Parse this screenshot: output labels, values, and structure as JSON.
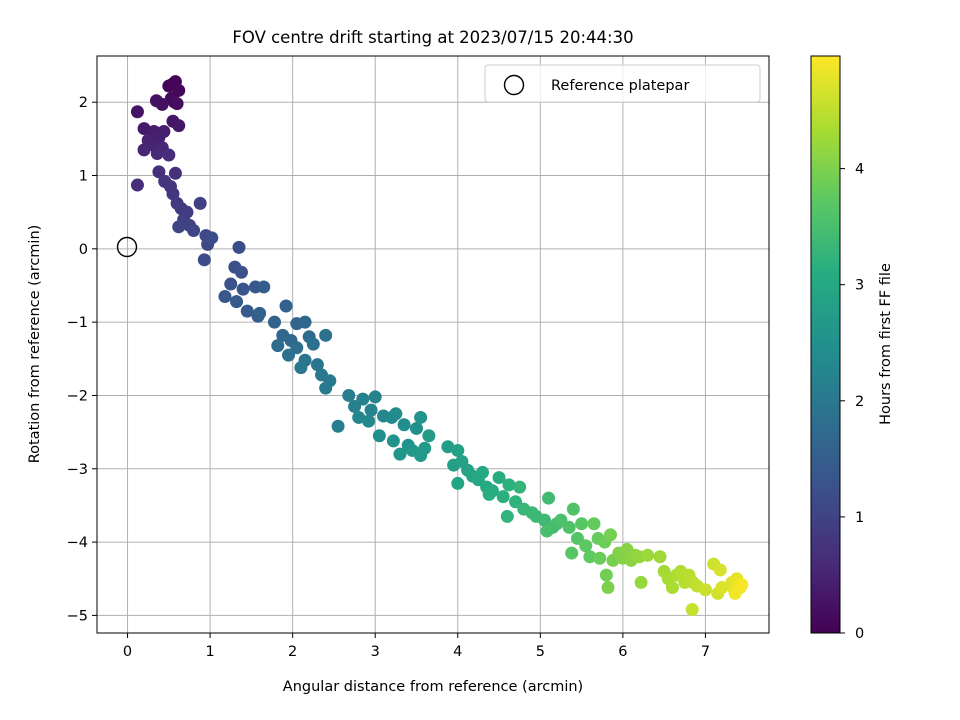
{
  "chart_data": {
    "type": "scatter",
    "title": "FOV centre drift starting at 2023/07/15 20:44:30",
    "xlabel": "Angular distance from reference (arcmin)",
    "ylabel": "Rotation from reference (arcmin)",
    "xlim": [
      -0.37,
      7.77
    ],
    "ylim": [
      -5.24,
      2.63
    ],
    "xticks": [
      0,
      1,
      2,
      3,
      4,
      5,
      6,
      7
    ],
    "yticks": [
      -5,
      -4,
      -3,
      -2,
      -1,
      0,
      1,
      2
    ],
    "grid": true,
    "legend": {
      "position": "top-right",
      "entries": [
        {
          "label": "Reference platepar",
          "marker": "open-circle"
        }
      ]
    },
    "reference_point": {
      "x": 0,
      "y": 0
    },
    "colorbar": {
      "label": "Hours from first FF file",
      "colormap": "viridis",
      "range": [
        0,
        4.97
      ],
      "ticks": [
        0,
        1,
        2,
        3,
        4
      ]
    },
    "points": [
      [
        0.55,
        2.25,
        0.0
      ],
      [
        0.58,
        2.28,
        0.03
      ],
      [
        0.5,
        2.22,
        0.06
      ],
      [
        0.62,
        2.16,
        0.09
      ],
      [
        0.53,
        2.05,
        0.12
      ],
      [
        0.57,
        2.0,
        0.15
      ],
      [
        0.6,
        1.98,
        0.18
      ],
      [
        0.42,
        1.97,
        0.21
      ],
      [
        0.35,
        2.02,
        0.24
      ],
      [
        0.12,
        1.87,
        0.27
      ],
      [
        0.55,
        1.74,
        0.3
      ],
      [
        0.62,
        1.68,
        0.33
      ],
      [
        0.2,
        1.64,
        0.36
      ],
      [
        0.32,
        1.6,
        0.39
      ],
      [
        0.44,
        1.6,
        0.42
      ],
      [
        0.38,
        1.52,
        0.45
      ],
      [
        0.25,
        1.48,
        0.48
      ],
      [
        0.3,
        1.42,
        0.51
      ],
      [
        0.2,
        1.35,
        0.54
      ],
      [
        0.42,
        1.38,
        0.57
      ],
      [
        0.36,
        1.3,
        0.6
      ],
      [
        0.5,
        1.28,
        0.63
      ],
      [
        0.12,
        0.87,
        0.66
      ],
      [
        0.38,
        1.05,
        0.69
      ],
      [
        0.58,
        1.03,
        0.72
      ],
      [
        0.45,
        0.92,
        0.75
      ],
      [
        0.52,
        0.85,
        0.78
      ],
      [
        0.55,
        0.75,
        0.81
      ],
      [
        0.6,
        0.62,
        0.84
      ],
      [
        0.65,
        0.55,
        0.87
      ],
      [
        0.72,
        0.5,
        0.9
      ],
      [
        0.68,
        0.4,
        0.93
      ],
      [
        0.88,
        0.62,
        0.96
      ],
      [
        0.75,
        0.32,
        0.99
      ],
      [
        0.62,
        0.3,
        1.02
      ],
      [
        0.8,
        0.25,
        1.05
      ],
      [
        0.95,
        0.18,
        1.08
      ],
      [
        0.97,
        0.06,
        1.11
      ],
      [
        0.93,
        -0.15,
        1.14
      ],
      [
        1.02,
        0.15,
        1.17
      ],
      [
        1.35,
        0.02,
        1.2
      ],
      [
        1.3,
        -0.25,
        1.23
      ],
      [
        1.38,
        -0.32,
        1.26
      ],
      [
        1.25,
        -0.48,
        1.29
      ],
      [
        1.4,
        -0.55,
        1.32
      ],
      [
        1.55,
        -0.52,
        1.35
      ],
      [
        1.18,
        -0.65,
        1.38
      ],
      [
        1.32,
        -0.72,
        1.41
      ],
      [
        1.45,
        -0.85,
        1.44
      ],
      [
        1.58,
        -0.92,
        1.47
      ],
      [
        1.65,
        -0.52,
        1.5
      ],
      [
        1.6,
        -0.88,
        1.53
      ],
      [
        1.92,
        -0.78,
        1.56
      ],
      [
        1.78,
        -1.0,
        1.59
      ],
      [
        2.05,
        -1.02,
        1.62
      ],
      [
        1.88,
        -1.18,
        1.65
      ],
      [
        2.15,
        -1.0,
        1.68
      ],
      [
        1.98,
        -1.25,
        1.71
      ],
      [
        2.2,
        -1.2,
        1.74
      ],
      [
        1.82,
        -1.32,
        1.77
      ],
      [
        2.05,
        -1.35,
        1.8
      ],
      [
        2.25,
        -1.3,
        1.83
      ],
      [
        2.4,
        -1.18,
        1.86
      ],
      [
        1.95,
        -1.45,
        1.89
      ],
      [
        2.15,
        -1.52,
        1.92
      ],
      [
        2.3,
        -1.58,
        1.95
      ],
      [
        2.1,
        -1.62,
        1.98
      ],
      [
        2.35,
        -1.72,
        2.01
      ],
      [
        2.45,
        -1.8,
        2.04
      ],
      [
        2.4,
        -1.9,
        2.07
      ],
      [
        2.68,
        -2.0,
        2.1
      ],
      [
        2.55,
        -2.42,
        2.13
      ],
      [
        2.75,
        -2.15,
        2.16
      ],
      [
        2.85,
        -2.05,
        2.19
      ],
      [
        3.0,
        -2.02,
        2.22
      ],
      [
        2.95,
        -2.2,
        2.25
      ],
      [
        3.1,
        -2.28,
        2.28
      ],
      [
        2.8,
        -2.3,
        2.31
      ],
      [
        2.92,
        -2.35,
        2.34
      ],
      [
        3.2,
        -2.3,
        2.37
      ],
      [
        3.25,
        -2.25,
        2.4
      ],
      [
        3.35,
        -2.4,
        2.43
      ],
      [
        3.5,
        -2.45,
        2.46
      ],
      [
        3.05,
        -2.55,
        2.49
      ],
      [
        3.22,
        -2.62,
        2.52
      ],
      [
        3.4,
        -2.68,
        2.55
      ],
      [
        3.55,
        -2.3,
        2.58
      ],
      [
        3.3,
        -2.8,
        2.61
      ],
      [
        3.45,
        -2.75,
        2.64
      ],
      [
        3.55,
        -2.82,
        2.67
      ],
      [
        3.6,
        -2.72,
        2.7
      ],
      [
        3.65,
        -2.55,
        2.73
      ],
      [
        3.88,
        -2.7,
        2.76
      ],
      [
        3.95,
        -2.95,
        2.79
      ],
      [
        4.0,
        -2.75,
        2.82
      ],
      [
        4.05,
        -2.9,
        2.85
      ],
      [
        4.12,
        -3.02,
        2.88
      ],
      [
        4.0,
        -3.2,
        2.91
      ],
      [
        4.18,
        -3.1,
        2.94
      ],
      [
        4.25,
        -3.15,
        2.97
      ],
      [
        4.35,
        -3.25,
        3.0
      ],
      [
        4.3,
        -3.05,
        3.03
      ],
      [
        4.42,
        -3.3,
        3.06
      ],
      [
        4.5,
        -3.12,
        3.09
      ],
      [
        4.38,
        -3.35,
        3.12
      ],
      [
        4.55,
        -3.38,
        3.15
      ],
      [
        4.62,
        -3.22,
        3.18
      ],
      [
        4.7,
        -3.45,
        3.21
      ],
      [
        4.6,
        -3.65,
        3.24
      ],
      [
        4.75,
        -3.25,
        3.27
      ],
      [
        4.8,
        -3.55,
        3.3
      ],
      [
        4.9,
        -3.6,
        3.33
      ],
      [
        4.95,
        -3.65,
        3.36
      ],
      [
        5.05,
        -3.7,
        3.39
      ],
      [
        5.1,
        -3.4,
        3.42
      ],
      [
        5.15,
        -3.8,
        3.45
      ],
      [
        5.2,
        -3.75,
        3.48
      ],
      [
        5.08,
        -3.85,
        3.51
      ],
      [
        5.25,
        -3.7,
        3.54
      ],
      [
        5.35,
        -3.8,
        3.57
      ],
      [
        5.4,
        -3.55,
        3.6
      ],
      [
        5.45,
        -3.95,
        3.63
      ],
      [
        5.38,
        -4.15,
        3.66
      ],
      [
        5.5,
        -3.75,
        3.69
      ],
      [
        5.55,
        -4.05,
        3.72
      ],
      [
        5.6,
        -4.2,
        3.75
      ],
      [
        5.65,
        -3.75,
        3.78
      ],
      [
        5.7,
        -3.95,
        3.81
      ],
      [
        5.72,
        -4.22,
        3.84
      ],
      [
        5.78,
        -4.0,
        3.87
      ],
      [
        5.8,
        -4.45,
        3.9
      ],
      [
        5.85,
        -3.9,
        3.93
      ],
      [
        5.88,
        -4.25,
        3.96
      ],
      [
        5.82,
        -4.62,
        3.99
      ],
      [
        5.95,
        -4.15,
        4.02
      ],
      [
        6.0,
        -4.22,
        4.05
      ],
      [
        6.05,
        -4.1,
        4.08
      ],
      [
        6.1,
        -4.25,
        4.11
      ],
      [
        6.15,
        -4.18,
        4.14
      ],
      [
        6.2,
        -4.2,
        4.17
      ],
      [
        6.22,
        -4.55,
        4.2
      ],
      [
        6.3,
        -4.18,
        4.23
      ],
      [
        6.45,
        -4.2,
        4.26
      ],
      [
        6.5,
        -4.4,
        4.29
      ],
      [
        6.55,
        -4.5,
        4.32
      ],
      [
        6.6,
        -4.62,
        4.35
      ],
      [
        6.65,
        -4.45,
        4.38
      ],
      [
        6.7,
        -4.4,
        4.41
      ],
      [
        6.75,
        -4.55,
        4.44
      ],
      [
        6.8,
        -4.45,
        4.47
      ],
      [
        6.85,
        -4.55,
        4.5
      ],
      [
        6.9,
        -4.6,
        4.53
      ],
      [
        6.84,
        -4.92,
        4.56
      ],
      [
        7.0,
        -4.65,
        4.59
      ],
      [
        7.1,
        -4.3,
        4.62
      ],
      [
        7.15,
        -4.7,
        4.65
      ],
      [
        7.18,
        -4.38,
        4.68
      ],
      [
        7.2,
        -4.62,
        4.71
      ],
      [
        7.32,
        -4.55,
        4.74
      ],
      [
        7.35,
        -4.65,
        4.77
      ],
      [
        7.38,
        -4.5,
        4.8
      ],
      [
        7.4,
        -4.6,
        4.83
      ],
      [
        7.42,
        -4.62,
        4.86
      ],
      [
        7.36,
        -4.7,
        4.89
      ],
      [
        7.44,
        -4.58,
        4.92
      ]
    ]
  }
}
